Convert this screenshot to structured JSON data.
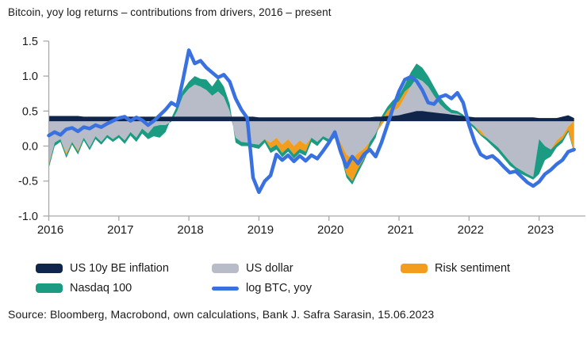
{
  "title": "Bitcoin, yoy log returns – contributions from drivers, 2016 – present",
  "source": "Source: Bloomberg, Macrobond, own calculations, Bank J. Safra Sarasin, 15.06.2023",
  "colors": {
    "inflation": "#10254b",
    "usd": "#b7bcc8",
    "risk": "#f29d1e",
    "nasdaq": "#1b9b81",
    "btc": "#3a71e0",
    "axis": "#a9a9a9",
    "tick_label": "#1a1a1a"
  },
  "legend": [
    {
      "label": "US 10y BE inflation",
      "color": "#10254b",
      "type": "box",
      "row": 0,
      "col": 0
    },
    {
      "label": "US dollar",
      "color": "#b7bcc8",
      "type": "box",
      "row": 0,
      "col": 1
    },
    {
      "label": "Risk sentiment",
      "color": "#f29d1e",
      "type": "box",
      "row": 0,
      "col": 2
    },
    {
      "label": "Nasdaq 100",
      "color": "#1b9b81",
      "type": "box",
      "row": 1,
      "col": 0
    },
    {
      "label": "log BTC, yoy",
      "color": "#3a71e0",
      "type": "line",
      "row": 1,
      "col": 1
    }
  ],
  "chart_data": {
    "type": "area",
    "title": "Bitcoin, yoy log returns – contributions from drivers, 2016 – present",
    "x_start": 2016,
    "x_step": 0.0833333,
    "x_end": 2023.45,
    "xticks": [
      2016,
      2017,
      2018,
      2019,
      2020,
      2021,
      2022,
      2023
    ],
    "yticks": [
      1.5,
      1.0,
      0.5,
      0.0,
      -0.5,
      -1.0
    ],
    "ylim": [
      -1.0,
      1.5
    ],
    "grid": false,
    "legend_position": "bottom",
    "stack_anchor": 0.4,
    "inflation_band_bottom": 0.355,
    "series": {
      "inflation_top": [
        0.43,
        0.43,
        0.43,
        0.43,
        0.43,
        0.43,
        0.42,
        0.42,
        0.42,
        0.42,
        0.42,
        0.42,
        0.42,
        0.42,
        0.42,
        0.42,
        0.42,
        0.42,
        0.42,
        0.42,
        0.42,
        0.42,
        0.42,
        0.42,
        0.42,
        0.42,
        0.42,
        0.42,
        0.42,
        0.42,
        0.42,
        0.42,
        0.42,
        0.42,
        0.42,
        0.42,
        0.41,
        0.41,
        0.41,
        0.41,
        0.41,
        0.41,
        0.41,
        0.41,
        0.41,
        0.41,
        0.41,
        0.41,
        0.41,
        0.41,
        0.41,
        0.41,
        0.41,
        0.41,
        0.41,
        0.41,
        0.42,
        0.42,
        0.43,
        0.43,
        0.44,
        0.46,
        0.48,
        0.5,
        0.5,
        0.49,
        0.48,
        0.47,
        0.46,
        0.45,
        0.44,
        0.43,
        0.42,
        0.41,
        0.41,
        0.41,
        0.41,
        0.41,
        0.41,
        0.41,
        0.41,
        0.41,
        0.41,
        0.41,
        0.4,
        0.4,
        0.4,
        0.4,
        0.42,
        0.44,
        0.4
      ],
      "usd_edge": [
        -0.25,
        0.05,
        0.1,
        -0.1,
        0.06,
        -0.06,
        0.12,
        -0.02,
        0.14,
        0.06,
        0.16,
        0.1,
        0.16,
        0.08,
        0.2,
        0.12,
        0.25,
        0.18,
        0.28,
        0.3,
        0.3,
        0.35,
        0.5,
        0.72,
        0.82,
        0.88,
        0.85,
        0.8,
        0.72,
        0.78,
        0.7,
        0.5,
        0.12,
        0.06,
        0.05,
        0.03,
        0.02,
        0.1,
        0.05,
        0.12,
        0.02,
        0.1,
        0.0,
        0.08,
        0.02,
        0.12,
        0.06,
        0.14,
        0.1,
        0.18,
        0.05,
        -0.12,
        -0.18,
        -0.1,
        -0.04,
        0.06,
        0.18,
        0.3,
        0.42,
        0.5,
        0.55,
        0.7,
        0.85,
        0.97,
        0.93,
        0.85,
        0.72,
        0.6,
        0.52,
        0.47,
        0.46,
        0.42,
        0.35,
        0.28,
        0.22,
        0.12,
        0.05,
        -0.02,
        -0.12,
        -0.22,
        -0.3,
        -0.35,
        -0.4,
        -0.44,
        0.1,
        0.0,
        -0.05,
        0.08,
        0.15,
        0.28,
        0.36
      ],
      "risk_edge": [
        -0.28,
        0.05,
        0.1,
        -0.13,
        0.06,
        -0.08,
        0.12,
        -0.02,
        0.14,
        0.06,
        0.16,
        0.1,
        0.16,
        0.08,
        0.2,
        0.12,
        0.25,
        0.18,
        0.28,
        0.3,
        0.3,
        0.35,
        0.5,
        0.72,
        0.82,
        0.88,
        0.85,
        0.8,
        0.72,
        0.78,
        0.7,
        0.5,
        0.12,
        0.06,
        0.05,
        0.03,
        0.02,
        0.1,
        -0.03,
        0.02,
        -0.1,
        -0.02,
        -0.12,
        -0.04,
        -0.08,
        0.12,
        0.06,
        0.14,
        0.1,
        0.18,
        -0.08,
        -0.4,
        -0.5,
        -0.32,
        -0.18,
        0.06,
        0.18,
        0.36,
        0.5,
        0.58,
        0.64,
        0.78,
        0.85,
        0.97,
        0.93,
        0.85,
        0.72,
        0.6,
        0.52,
        0.47,
        0.46,
        0.42,
        0.35,
        0.28,
        0.17,
        0.12,
        0.05,
        -0.02,
        -0.12,
        -0.22,
        -0.3,
        -0.35,
        -0.4,
        -0.44,
        0.1,
        0.0,
        -0.05,
        0.03,
        0.1,
        0.23,
        -0.08
      ],
      "nasdaq_edge": [
        -0.32,
        0.0,
        0.06,
        -0.17,
        0.02,
        -0.12,
        0.08,
        -0.06,
        0.1,
        0.02,
        0.12,
        0.06,
        0.12,
        0.03,
        0.15,
        0.06,
        0.18,
        0.1,
        0.14,
        0.12,
        0.2,
        0.4,
        0.58,
        0.8,
        0.92,
        1.0,
        0.96,
        0.95,
        0.85,
        0.97,
        0.85,
        0.6,
        0.05,
        0.0,
        0.0,
        -0.02,
        -0.04,
        0.05,
        -0.1,
        -0.05,
        -0.16,
        -0.08,
        -0.18,
        -0.1,
        -0.14,
        0.06,
        0.0,
        0.1,
        0.05,
        0.12,
        -0.12,
        -0.45,
        -0.55,
        -0.38,
        -0.22,
        -0.02,
        0.12,
        0.42,
        0.56,
        0.66,
        0.72,
        0.88,
        1.05,
        1.18,
        1.12,
        1.0,
        0.85,
        0.7,
        0.6,
        0.52,
        0.5,
        0.45,
        0.32,
        0.24,
        0.15,
        0.08,
        0.0,
        -0.08,
        -0.18,
        -0.28,
        -0.34,
        -0.4,
        -0.44,
        -0.48,
        -0.4,
        -0.2,
        -0.15,
        -0.02,
        0.05,
        0.2,
        -0.1
      ],
      "btc": [
        0.15,
        0.2,
        0.16,
        0.24,
        0.26,
        0.21,
        0.27,
        0.25,
        0.3,
        0.27,
        0.32,
        0.36,
        0.4,
        0.42,
        0.36,
        0.41,
        0.37,
        0.3,
        0.36,
        0.44,
        0.52,
        0.62,
        0.57,
        0.95,
        1.37,
        1.18,
        1.22,
        1.12,
        1.05,
        0.98,
        1.02,
        0.92,
        0.68,
        0.52,
        0.4,
        -0.45,
        -0.66,
        -0.5,
        -0.42,
        -0.12,
        -0.2,
        -0.13,
        -0.22,
        -0.14,
        -0.21,
        -0.13,
        -0.18,
        -0.07,
        0.05,
        0.2,
        -0.08,
        -0.3,
        -0.15,
        -0.25,
        -0.12,
        -0.05,
        -0.15,
        0.05,
        0.3,
        0.55,
        0.78,
        0.95,
        0.99,
        0.93,
        0.8,
        0.62,
        0.6,
        0.7,
        0.73,
        0.68,
        0.76,
        0.62,
        0.3,
        0.05,
        -0.12,
        -0.17,
        -0.14,
        -0.21,
        -0.3,
        -0.38,
        -0.36,
        -0.44,
        -0.52,
        -0.57,
        -0.51,
        -0.4,
        -0.34,
        -0.26,
        -0.2,
        -0.08,
        -0.05
      ]
    },
    "series_meta": [
      {
        "key": "inflation_top",
        "name": "US 10y BE inflation",
        "kind": "stacked-contribution"
      },
      {
        "key": "usd_edge",
        "name": "US dollar",
        "kind": "stacked-contribution"
      },
      {
        "key": "risk_edge",
        "name": "Risk sentiment",
        "kind": "stacked-contribution"
      },
      {
        "key": "nasdaq_edge",
        "name": "Nasdaq 100",
        "kind": "stacked-contribution"
      },
      {
        "key": "btc",
        "name": "log BTC, yoy",
        "kind": "line"
      }
    ]
  }
}
